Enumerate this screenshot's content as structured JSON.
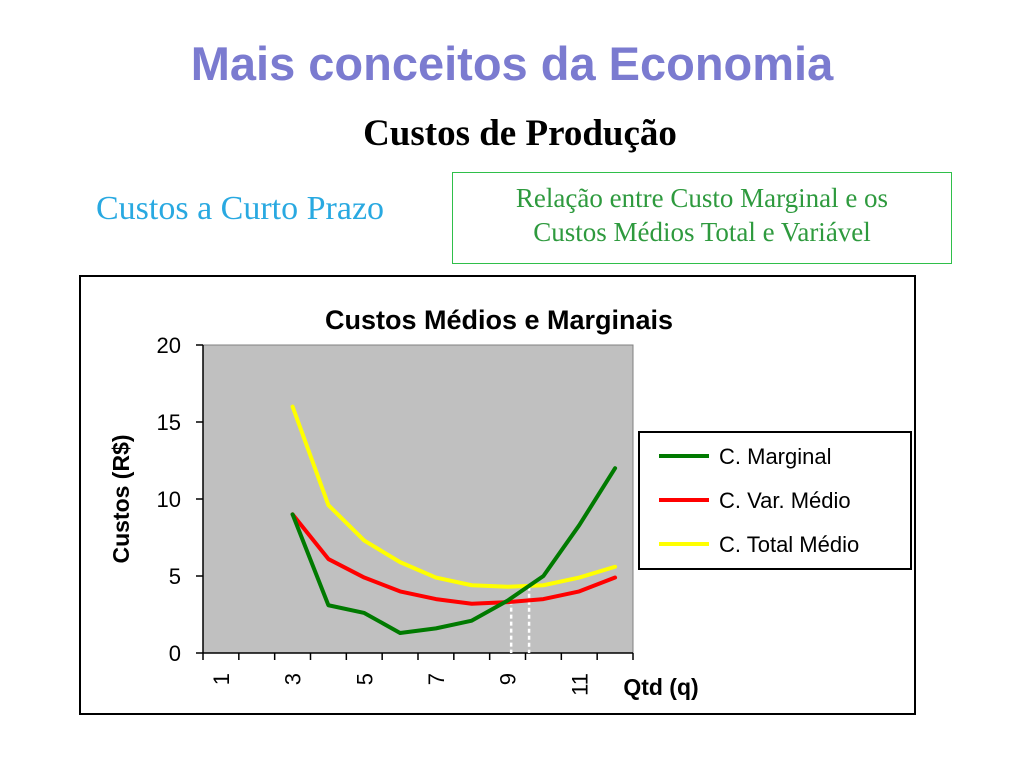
{
  "slide": {
    "title": "Mais conceitos da Economia",
    "subtitle": "Custos de Produção",
    "section": "Custos a Curto Prazo",
    "relation_line1": "Relação entre Custo Marginal e os",
    "relation_line2": "Custos Médios Total e Variável"
  },
  "chart_data": {
    "type": "line",
    "title": "Custos Médios e Marginais",
    "xlabel": "Qtd (q)",
    "ylabel": "Custos (R$)",
    "x_tick_labels": [
      "1",
      "3",
      "5",
      "7",
      "9",
      "11"
    ],
    "y_ticks": [
      "0",
      "5",
      "10",
      "15",
      "20"
    ],
    "ylim": [
      0,
      20
    ],
    "grid": false,
    "plot_background": "#c0c0c0",
    "legend_position": "right",
    "series": [
      {
        "name": "C. Marginal",
        "color": "#007a00",
        "x": [
          3,
          4,
          5,
          6,
          7,
          8,
          9,
          10,
          11,
          12
        ],
        "values": [
          9.0,
          3.1,
          2.6,
          1.3,
          1.6,
          2.1,
          3.4,
          5.0,
          8.3,
          12.0
        ]
      },
      {
        "name": "C. Var. Médio",
        "color": "#ff0000",
        "x": [
          3,
          4,
          5,
          6,
          7,
          8,
          9,
          10,
          11,
          12
        ],
        "values": [
          9.0,
          6.1,
          4.9,
          4.0,
          3.5,
          3.2,
          3.3,
          3.5,
          4.0,
          4.9
        ]
      },
      {
        "name": "C. Total Médio",
        "color": "#ffff00",
        "x": [
          3,
          4,
          5,
          6,
          7,
          8,
          9,
          10,
          11,
          12
        ],
        "values": [
          16.0,
          9.6,
          7.3,
          5.9,
          4.9,
          4.4,
          4.3,
          4.4,
          4.9,
          5.6
        ]
      }
    ],
    "annotations": [
      {
        "type": "dashed-vertical",
        "x": 9.1,
        "y": 3.4
      },
      {
        "type": "dashed-vertical",
        "x": 9.6,
        "y": 4.3
      }
    ]
  }
}
